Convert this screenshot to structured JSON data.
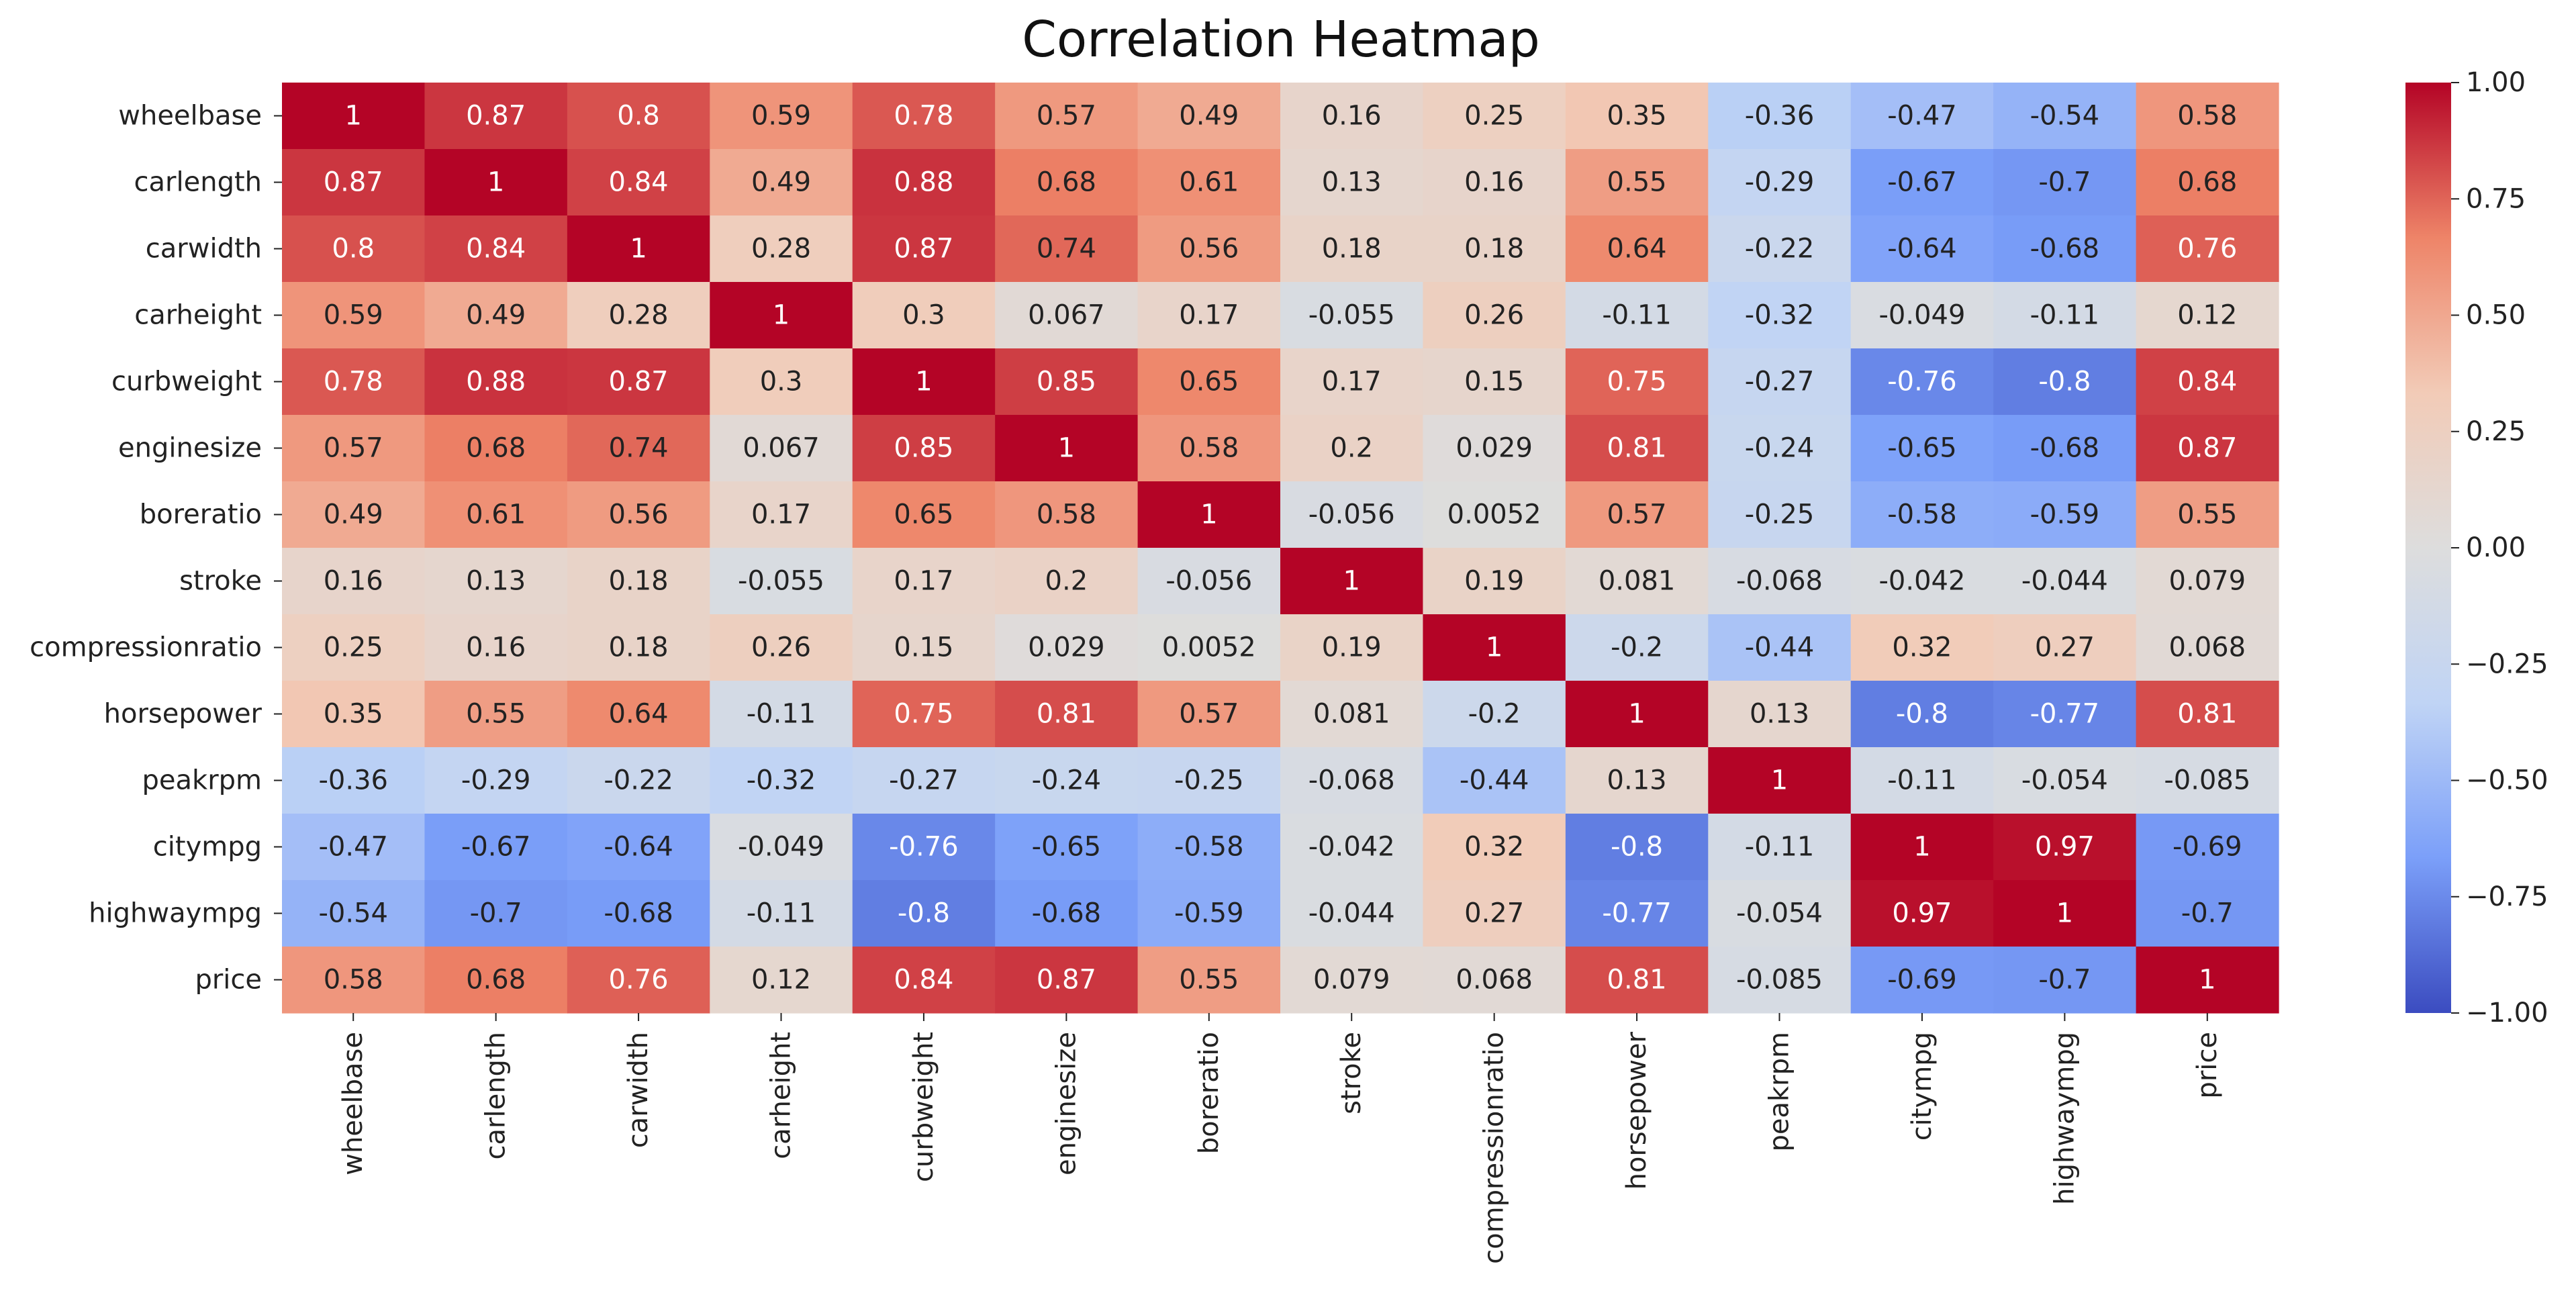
{
  "chart_data": {
    "type": "heatmap",
    "title": "Correlation Heatmap",
    "xlabel": "",
    "ylabel": "",
    "rows": [
      "wheelbase",
      "carlength",
      "carwidth",
      "carheight",
      "curbweight",
      "enginesize",
      "boreratio",
      "stroke",
      "compressionratio",
      "horsepower",
      "peakrpm",
      "citympg",
      "highwaympg",
      "price"
    ],
    "columns": [
      "wheelbase",
      "carlength",
      "carwidth",
      "carheight",
      "curbweight",
      "enginesize",
      "boreratio",
      "stroke",
      "compressionratio",
      "horsepower",
      "peakrpm",
      "citympg",
      "highwaympg",
      "price"
    ],
    "values": [
      [
        "1",
        "0.87",
        "0.8",
        "0.59",
        "0.78",
        "0.57",
        "0.49",
        "0.16",
        "0.25",
        "0.35",
        "-0.36",
        "-0.47",
        "-0.54",
        "0.58"
      ],
      [
        "0.87",
        "1",
        "0.84",
        "0.49",
        "0.88",
        "0.68",
        "0.61",
        "0.13",
        "0.16",
        "0.55",
        "-0.29",
        "-0.67",
        "-0.7",
        "0.68"
      ],
      [
        "0.8",
        "0.84",
        "1",
        "0.28",
        "0.87",
        "0.74",
        "0.56",
        "0.18",
        "0.18",
        "0.64",
        "-0.22",
        "-0.64",
        "-0.68",
        "0.76"
      ],
      [
        "0.59",
        "0.49",
        "0.28",
        "1",
        "0.3",
        "0.067",
        "0.17",
        "-0.055",
        "0.26",
        "-0.11",
        "-0.32",
        "-0.049",
        "-0.11",
        "0.12"
      ],
      [
        "0.78",
        "0.88",
        "0.87",
        "0.3",
        "1",
        "0.85",
        "0.65",
        "0.17",
        "0.15",
        "0.75",
        "-0.27",
        "-0.76",
        "-0.8",
        "0.84"
      ],
      [
        "0.57",
        "0.68",
        "0.74",
        "0.067",
        "0.85",
        "1",
        "0.58",
        "0.2",
        "0.029",
        "0.81",
        "-0.24",
        "-0.65",
        "-0.68",
        "0.87"
      ],
      [
        "0.49",
        "0.61",
        "0.56",
        "0.17",
        "0.65",
        "0.58",
        "1",
        "-0.056",
        "0.0052",
        "0.57",
        "-0.25",
        "-0.58",
        "-0.59",
        "0.55"
      ],
      [
        "0.16",
        "0.13",
        "0.18",
        "-0.055",
        "0.17",
        "0.2",
        "-0.056",
        "1",
        "0.19",
        "0.081",
        "-0.068",
        "-0.042",
        "-0.044",
        "0.079"
      ],
      [
        "0.25",
        "0.16",
        "0.18",
        "0.26",
        "0.15",
        "0.029",
        "0.0052",
        "0.19",
        "1",
        "-0.2",
        "-0.44",
        "0.32",
        "0.27",
        "0.068"
      ],
      [
        "0.35",
        "0.55",
        "0.64",
        "-0.11",
        "0.75",
        "0.81",
        "0.57",
        "0.081",
        "-0.2",
        "1",
        "0.13",
        "-0.8",
        "-0.77",
        "0.81"
      ],
      [
        "-0.36",
        "-0.29",
        "-0.22",
        "-0.32",
        "-0.27",
        "-0.24",
        "-0.25",
        "-0.068",
        "-0.44",
        "0.13",
        "1",
        "-0.11",
        "-0.054",
        "-0.085"
      ],
      [
        "-0.47",
        "-0.67",
        "-0.64",
        "-0.049",
        "-0.76",
        "-0.65",
        "-0.58",
        "-0.042",
        "0.32",
        "-0.8",
        "-0.11",
        "1",
        "0.97",
        "-0.69"
      ],
      [
        "-0.54",
        "-0.7",
        "-0.68",
        "-0.11",
        "-0.8",
        "-0.68",
        "-0.59",
        "-0.044",
        "0.27",
        "-0.77",
        "-0.054",
        "0.97",
        "1",
        "-0.7"
      ],
      [
        "0.58",
        "0.68",
        "0.76",
        "0.12",
        "0.84",
        "0.87",
        "0.55",
        "0.079",
        "0.068",
        "0.81",
        "-0.085",
        "-0.69",
        "-0.7",
        "1"
      ]
    ],
    "colormap": "coolwarm",
    "colormap_stops": [
      "#3b4cc0",
      "#7b9ff9",
      "#c0d4f5",
      "#dddddd",
      "#f2cbb7",
      "#ee8468",
      "#b40426"
    ],
    "vmin": -1,
    "vmax": 1,
    "colorbar_ticks": [
      "1.00",
      "0.75",
      "0.50",
      "0.25",
      "0.00",
      "−0.25",
      "−0.50",
      "−0.75",
      "−1.00"
    ],
    "colorbar_tick_values": [
      1.0,
      0.75,
      0.5,
      0.25,
      0.0,
      -0.25,
      -0.5,
      -0.75,
      -1.0
    ],
    "grid": false,
    "legend": "colorbar-right"
  }
}
